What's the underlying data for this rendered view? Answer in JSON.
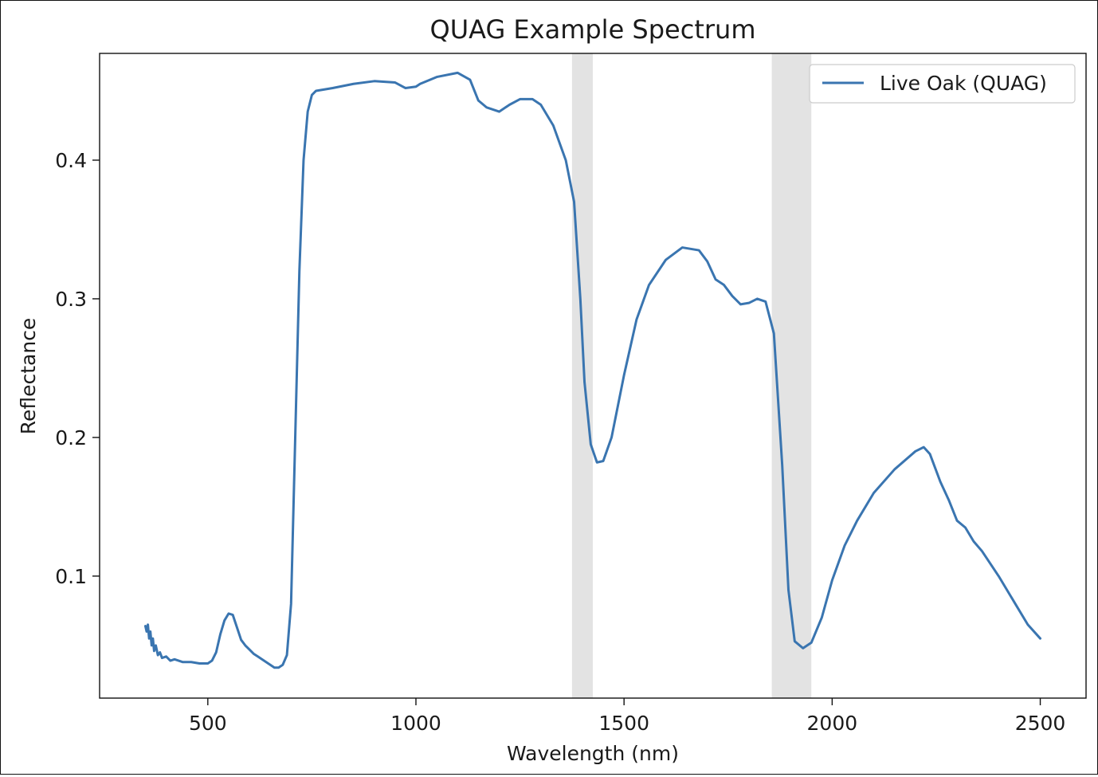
{
  "chart_data": {
    "type": "line",
    "title": "QUAG Example Spectrum",
    "xlabel": "Wavelength (nm)",
    "ylabel": "Reflectance",
    "xlim": [
      240,
      2610
    ],
    "ylim": [
      0.012,
      0.477
    ],
    "x_ticks": [
      500,
      1000,
      1500,
      2000,
      2500
    ],
    "x_tick_labels": [
      "500",
      "1000",
      "1500",
      "2000",
      "2500"
    ],
    "y_ticks": [
      0.1,
      0.2,
      0.3,
      0.4
    ],
    "y_tick_labels": [
      "0.1",
      "0.2",
      "0.3",
      "0.4"
    ],
    "grid": false,
    "legend_position": "top-right",
    "shaded_bands": [
      {
        "x_start": 1375,
        "x_end": 1425,
        "color": "#e3e3e3"
      },
      {
        "x_start": 1855,
        "x_end": 1950,
        "color": "#e3e3e3"
      }
    ],
    "series": [
      {
        "name": "Live Oak (QUAG)",
        "color": "#3a75b0",
        "points": [
          [
            350,
            0.064
          ],
          [
            353,
            0.06
          ],
          [
            356,
            0.065
          ],
          [
            359,
            0.055
          ],
          [
            362,
            0.06
          ],
          [
            365,
            0.05
          ],
          [
            368,
            0.055
          ],
          [
            371,
            0.046
          ],
          [
            375,
            0.05
          ],
          [
            380,
            0.043
          ],
          [
            385,
            0.045
          ],
          [
            390,
            0.041
          ],
          [
            400,
            0.042
          ],
          [
            410,
            0.039
          ],
          [
            420,
            0.04
          ],
          [
            440,
            0.038
          ],
          [
            460,
            0.038
          ],
          [
            480,
            0.037
          ],
          [
            500,
            0.037
          ],
          [
            510,
            0.039
          ],
          [
            520,
            0.045
          ],
          [
            530,
            0.058
          ],
          [
            540,
            0.068
          ],
          [
            550,
            0.073
          ],
          [
            560,
            0.072
          ],
          [
            570,
            0.063
          ],
          [
            580,
            0.054
          ],
          [
            590,
            0.05
          ],
          [
            600,
            0.047
          ],
          [
            610,
            0.044
          ],
          [
            620,
            0.042
          ],
          [
            630,
            0.04
          ],
          [
            640,
            0.038
          ],
          [
            650,
            0.036
          ],
          [
            660,
            0.034
          ],
          [
            670,
            0.034
          ],
          [
            680,
            0.036
          ],
          [
            690,
            0.043
          ],
          [
            700,
            0.08
          ],
          [
            710,
            0.2
          ],
          [
            720,
            0.32
          ],
          [
            730,
            0.4
          ],
          [
            740,
            0.435
          ],
          [
            750,
            0.447
          ],
          [
            760,
            0.45
          ],
          [
            800,
            0.452
          ],
          [
            850,
            0.455
          ],
          [
            900,
            0.457
          ],
          [
            950,
            0.456
          ],
          [
            975,
            0.452
          ],
          [
            1000,
            0.453
          ],
          [
            1010,
            0.455
          ],
          [
            1050,
            0.46
          ],
          [
            1100,
            0.463
          ],
          [
            1130,
            0.458
          ],
          [
            1150,
            0.443
          ],
          [
            1170,
            0.438
          ],
          [
            1200,
            0.435
          ],
          [
            1225,
            0.44
          ],
          [
            1250,
            0.444
          ],
          [
            1280,
            0.444
          ],
          [
            1300,
            0.44
          ],
          [
            1330,
            0.425
          ],
          [
            1360,
            0.4
          ],
          [
            1380,
            0.37
          ],
          [
            1395,
            0.3
          ],
          [
            1405,
            0.24
          ],
          [
            1420,
            0.195
          ],
          [
            1435,
            0.182
          ],
          [
            1450,
            0.183
          ],
          [
            1470,
            0.2
          ],
          [
            1500,
            0.245
          ],
          [
            1530,
            0.285
          ],
          [
            1560,
            0.31
          ],
          [
            1600,
            0.328
          ],
          [
            1640,
            0.337
          ],
          [
            1680,
            0.335
          ],
          [
            1700,
            0.327
          ],
          [
            1720,
            0.314
          ],
          [
            1740,
            0.31
          ],
          [
            1760,
            0.302
          ],
          [
            1780,
            0.296
          ],
          [
            1800,
            0.297
          ],
          [
            1820,
            0.3
          ],
          [
            1840,
            0.298
          ],
          [
            1860,
            0.275
          ],
          [
            1880,
            0.18
          ],
          [
            1895,
            0.09
          ],
          [
            1910,
            0.053
          ],
          [
            1930,
            0.048
          ],
          [
            1950,
            0.052
          ],
          [
            1975,
            0.07
          ],
          [
            2000,
            0.097
          ],
          [
            2030,
            0.122
          ],
          [
            2060,
            0.14
          ],
          [
            2100,
            0.16
          ],
          [
            2150,
            0.177
          ],
          [
            2200,
            0.19
          ],
          [
            2220,
            0.193
          ],
          [
            2235,
            0.188
          ],
          [
            2260,
            0.168
          ],
          [
            2280,
            0.155
          ],
          [
            2300,
            0.14
          ],
          [
            2320,
            0.135
          ],
          [
            2340,
            0.125
          ],
          [
            2360,
            0.118
          ],
          [
            2400,
            0.1
          ],
          [
            2440,
            0.08
          ],
          [
            2470,
            0.065
          ],
          [
            2500,
            0.055
          ]
        ]
      }
    ]
  }
}
